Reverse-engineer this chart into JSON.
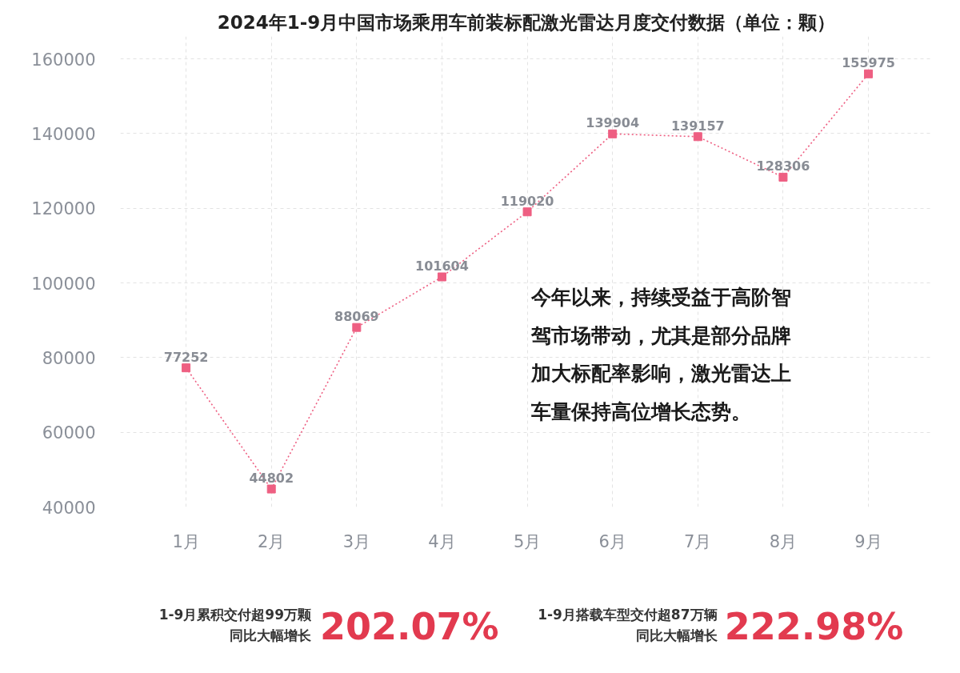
{
  "chart_data": {
    "type": "line",
    "title": "2024年1-9月中国市场乘用车前装标配激光雷达月度交付数据（单位：颗）",
    "categories": [
      "1月",
      "2月",
      "3月",
      "4月",
      "5月",
      "6月",
      "7月",
      "8月",
      "9月"
    ],
    "series": [
      {
        "color": "#ee5f82",
        "values": [
          77252,
          44802,
          88069,
          101604,
          119020,
          139904,
          139157,
          128306,
          155975
        ]
      }
    ],
    "ylim": [
      40000,
      166000
    ],
    "yticks": [
      40000,
      60000,
      80000,
      100000,
      120000,
      140000,
      160000
    ],
    "grid": true,
    "marker": "square",
    "line_style": "dotted",
    "data_labels": true,
    "annotations": [
      "今年以来，持续受益于高阶智驾市场带动，尤其是部分品牌加大标配率影响，激光雷达上车量保持高位增长态势。",
      "1-9月累积交付超99万颗",
      "同比大幅增长",
      "202.07%",
      "1-9月搭载车型交付超87万辆",
      "同比大幅增长",
      "222.98%"
    ]
  }
}
